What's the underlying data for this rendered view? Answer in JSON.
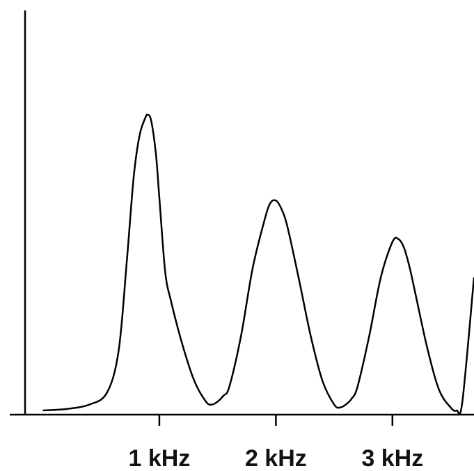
{
  "chart_data": {
    "type": "line",
    "title": "",
    "xlabel": "",
    "ylabel": "",
    "xlim": [
      -0.2,
      3.7
    ],
    "ylim": [
      0,
      1.0
    ],
    "x_ticks": [
      {
        "value": 1,
        "label": "1 kHz"
      },
      {
        "value": 2,
        "label": "2 kHz"
      },
      {
        "value": 3,
        "label": "3 kHz"
      }
    ],
    "grid": false,
    "legend": "none",
    "series": [
      {
        "color": "#000000",
        "x": [
          0.0,
          0.2,
          0.4,
          0.55,
          0.65,
          0.72,
          0.78,
          0.83,
          0.88,
          0.9,
          0.93,
          0.97,
          1.0,
          1.05,
          1.1,
          1.2,
          1.3,
          1.4,
          1.45,
          1.5,
          1.55,
          1.6,
          1.7,
          1.8,
          1.9,
          1.95,
          2.0,
          2.05,
          2.1,
          2.2,
          2.3,
          2.4,
          2.5,
          2.55,
          2.6,
          2.65,
          2.7,
          2.8,
          2.9,
          3.0,
          3.05,
          3.1,
          3.15,
          3.2,
          3.3,
          3.4,
          3.5,
          3.55,
          3.6,
          3.7
        ],
        "y": [
          0.0,
          0.005,
          0.02,
          0.06,
          0.2,
          0.5,
          0.79,
          0.93,
          0.99,
          1.0,
          0.98,
          0.87,
          0.72,
          0.47,
          0.37,
          0.22,
          0.1,
          0.03,
          0.02,
          0.03,
          0.05,
          0.08,
          0.25,
          0.48,
          0.64,
          0.7,
          0.71,
          0.68,
          0.62,
          0.44,
          0.25,
          0.1,
          0.02,
          0.01,
          0.02,
          0.04,
          0.08,
          0.25,
          0.45,
          0.57,
          0.58,
          0.55,
          0.48,
          0.39,
          0.21,
          0.07,
          0.01,
          0.0,
          0.03,
          0.45
        ]
      }
    ]
  }
}
